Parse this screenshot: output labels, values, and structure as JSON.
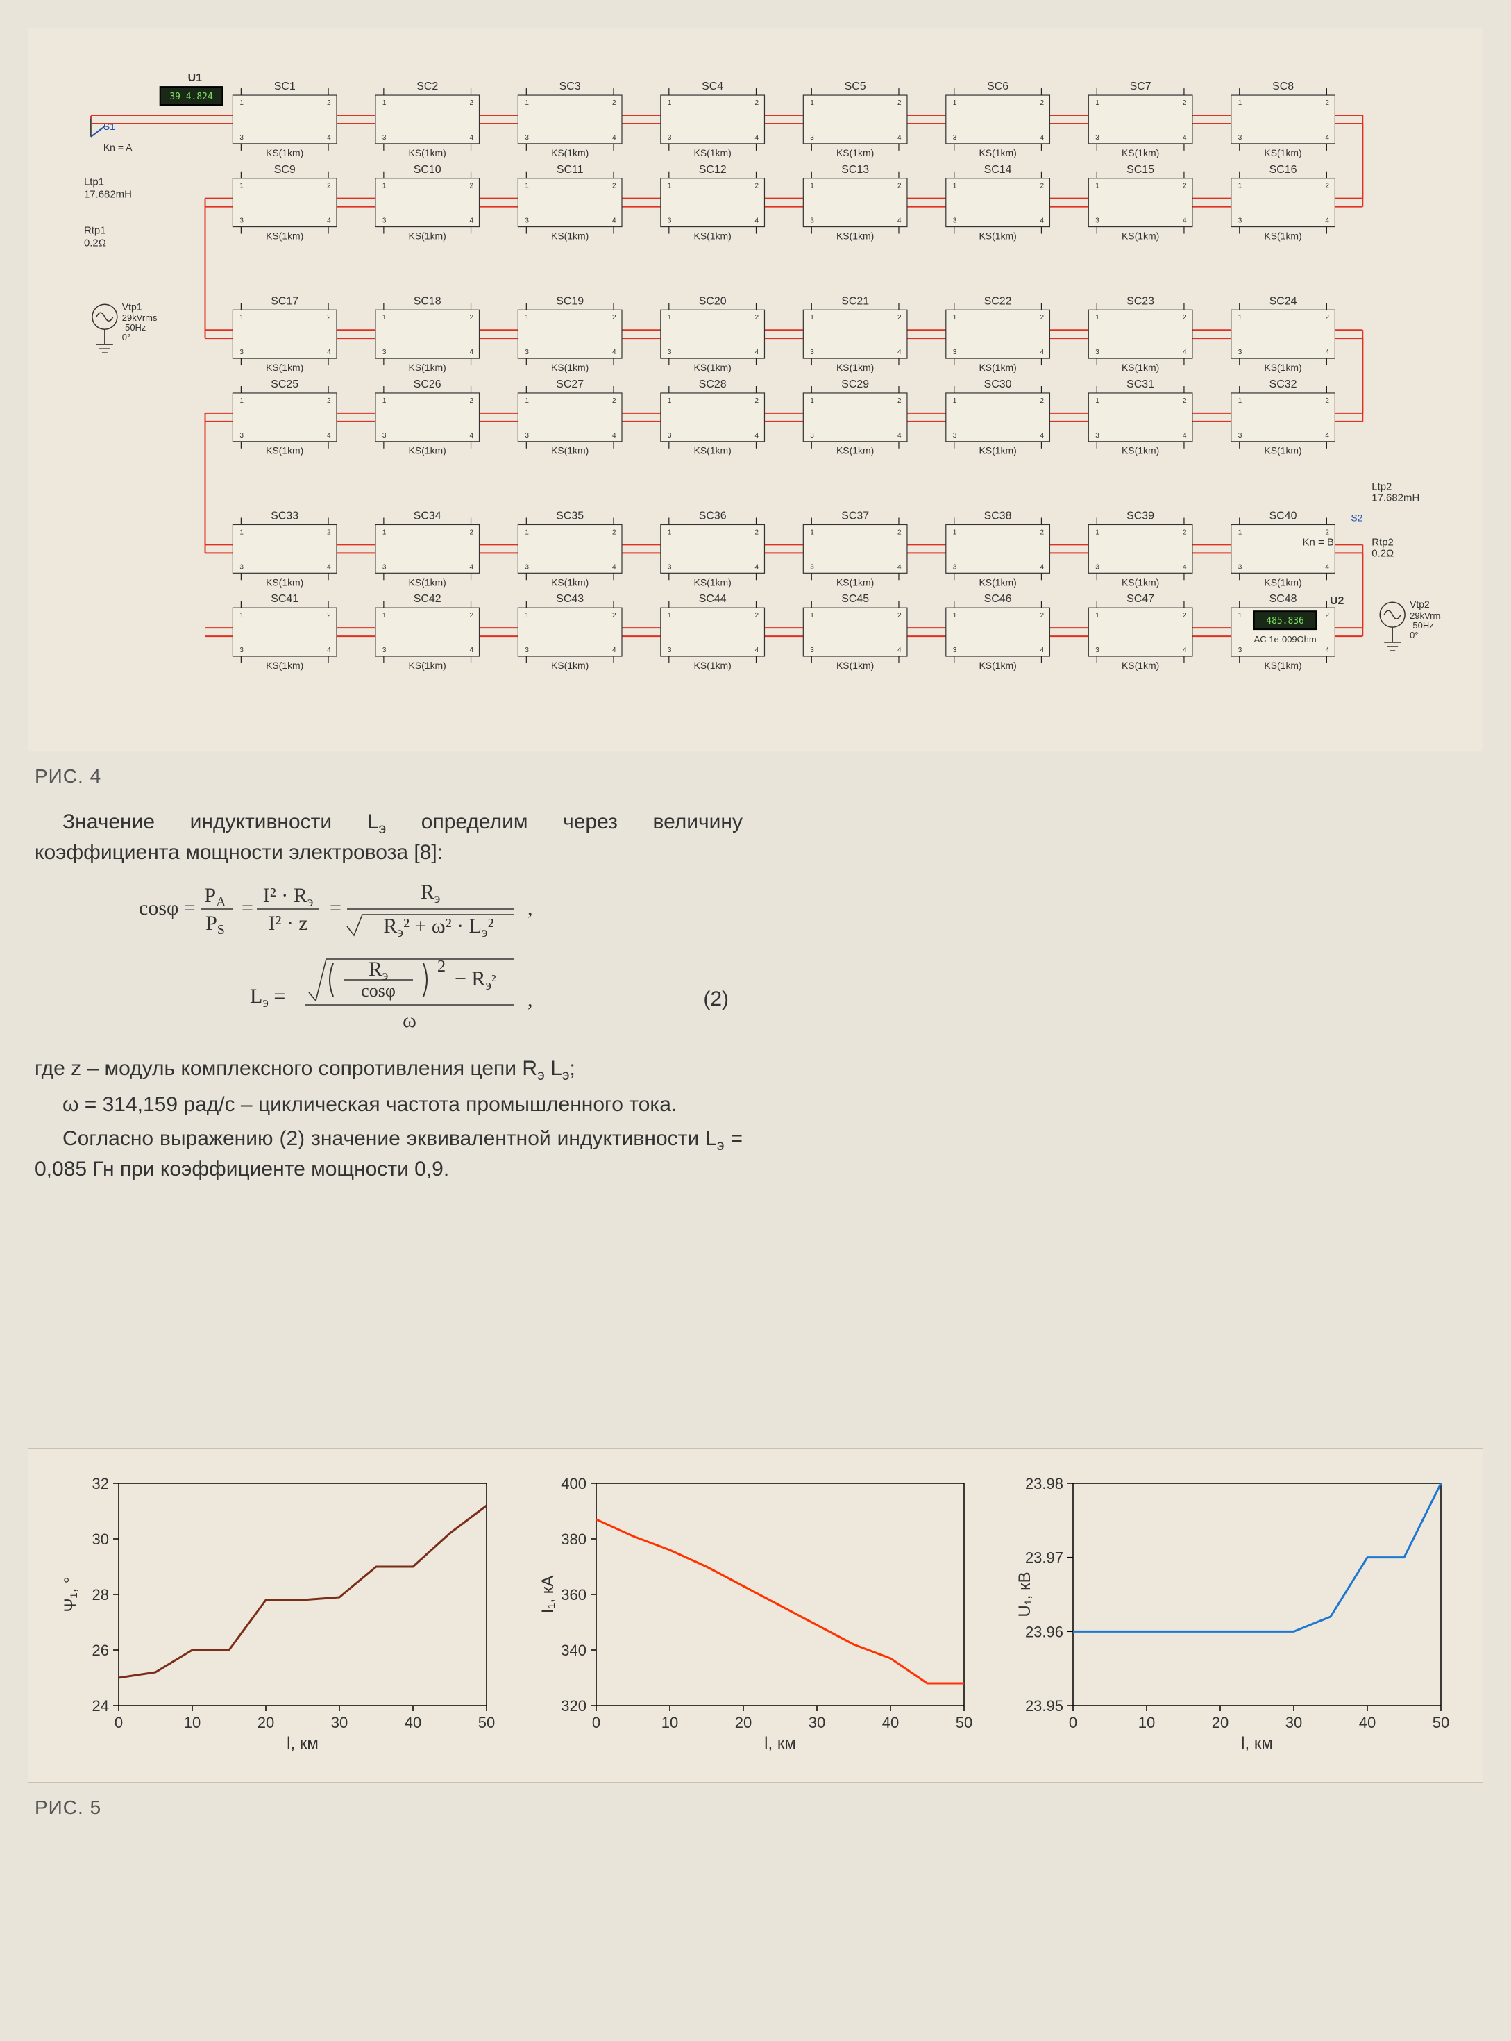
{
  "fig4_caption": "РИС. 4",
  "fig5_caption": "РИС. 5",
  "circuit": {
    "rows": 6,
    "cols_per_row": 8,
    "block_label_prefix": "SC",
    "block_sub_label": "KS(1km)",
    "left_source": {
      "U_label": "U1",
      "S_label": "S1",
      "Kn_label": "Kn = A",
      "L_label": "Ltp1",
      "L_value": "17.682mH",
      "R_label": "Rtp1",
      "R_value": "0.2Ω",
      "V_label": "Vtp1",
      "V_line1": "29kVrms",
      "V_line2": "-50Hz",
      "V_line3": "0°",
      "meter_value": "39 4.824"
    },
    "right_source": {
      "U_label": "U2",
      "S_label": "S2",
      "Kn_label": "Kn = B",
      "L_label": "Ltp2",
      "L_value": "17.682mH",
      "R_label": "Rtp2",
      "R_value": "0.2Ω",
      "V_label": "Vtp2",
      "V_line1": "29kVrms",
      "V_line2": "-50Hz",
      "V_line3": "0°",
      "meter_value": "485.836",
      "AC_label": "AC 1e-009Ohm"
    },
    "block_fill": "#f3eee2",
    "block_stroke": "#333333",
    "wire_red": "#e03020",
    "wire_black": "#222222",
    "text_color": "#333333",
    "meter_bg": "#1a2818",
    "meter_text": "#7de060"
  },
  "text": {
    "p1": "Значение индуктивности Lэ определим через величину коэффициента мощности электровоза [8]:",
    "p2_a": "где z – модуль комплексного сопротивления цепи Rэ Lэ;",
    "p2_b": "ω = 314,159 рад/с – циклическая частота промышленного тока.",
    "p3": "Согласно выражению (2) значение эквивалентной индуктивности Lэ = 0,085 Гн при коэффициенте мощности 0,9.",
    "eq_label": "(2)"
  },
  "charts": {
    "xlabel": "l, км",
    "x_ticks": [
      0,
      10,
      20,
      30,
      40,
      50
    ],
    "background": "#ede7dc",
    "axis_color": "#000000",
    "grid_color": "#d0c8b8",
    "tick_fontsize": 22,
    "label_fontsize": 24,
    "chart1": {
      "ylabel": "Ψ₁, °",
      "ylim": [
        24,
        32
      ],
      "y_ticks": [
        24,
        26,
        28,
        30,
        32
      ],
      "line_color": "#7a2e1a",
      "line_width": 3,
      "x": [
        0,
        5,
        10,
        15,
        20,
        25,
        30,
        35,
        40,
        45,
        50
      ],
      "y": [
        25.0,
        25.2,
        26.0,
        26.0,
        27.8,
        27.8,
        27.9,
        29.0,
        29.0,
        30.2,
        31.2
      ]
    },
    "chart2": {
      "ylabel": "I₁, кА",
      "ylim": [
        320,
        400
      ],
      "y_ticks": [
        320,
        340,
        360,
        380,
        400
      ],
      "line_color": "#ff3300",
      "line_width": 3,
      "x": [
        0,
        5,
        10,
        15,
        20,
        25,
        30,
        35,
        40,
        45,
        50
      ],
      "y": [
        387,
        381,
        376,
        370,
        363,
        356,
        349,
        342,
        337,
        328,
        328
      ]
    },
    "chart3": {
      "ylabel": "U₁, кВ",
      "ylim": [
        23.95,
        23.98
      ],
      "y_ticks": [
        23.95,
        23.96,
        23.97,
        23.98
      ],
      "line_color": "#1e78d2",
      "line_width": 3,
      "x": [
        0,
        5,
        10,
        15,
        20,
        25,
        30,
        35,
        40,
        45,
        50
      ],
      "y": [
        23.96,
        23.96,
        23.96,
        23.96,
        23.96,
        23.96,
        23.96,
        23.962,
        23.97,
        23.97,
        23.98
      ]
    }
  }
}
